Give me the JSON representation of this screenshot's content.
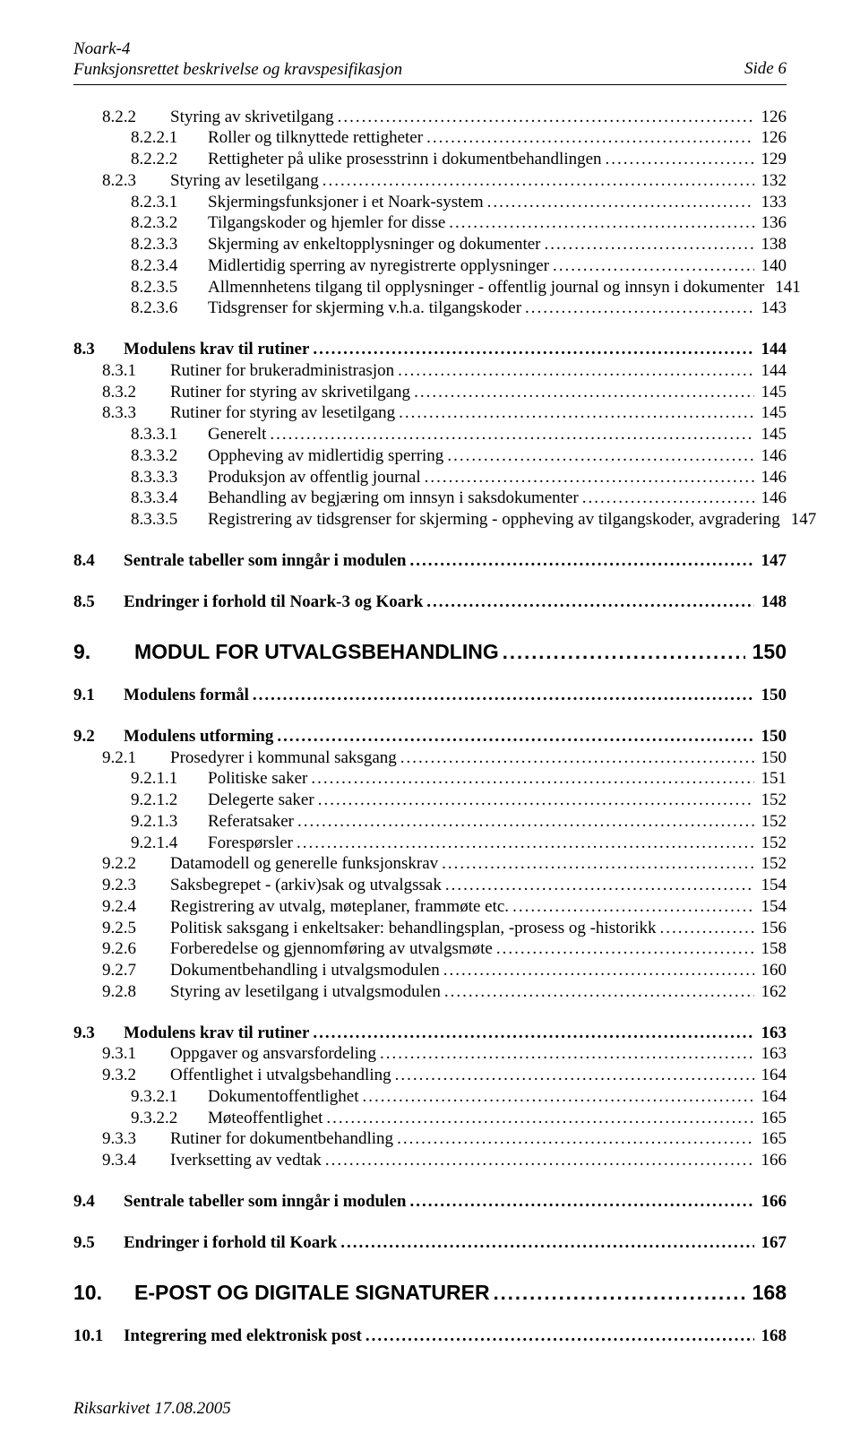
{
  "header": {
    "title1": "Noark-4",
    "title2": "Funksjonsrettet beskrivelse og kravspesifikasjon",
    "pageLabel": "Side 6"
  },
  "footer": "Riksarkivet 17.08.2005",
  "toc": [
    {
      "level": 3,
      "num": "8.2.2",
      "title": "Styring av skrivetilgang",
      "page": "126",
      "gap": ""
    },
    {
      "level": 4,
      "num": "8.2.2.1",
      "title": "Roller og tilknyttede rettigheter",
      "page": "126",
      "gap": ""
    },
    {
      "level": 4,
      "num": "8.2.2.2",
      "title": "Rettigheter på ulike prosesstrinn i dokumentbehandlingen",
      "page": "129",
      "gap": ""
    },
    {
      "level": 3,
      "num": "8.2.3",
      "title": "Styring av lesetilgang",
      "page": "132",
      "gap": ""
    },
    {
      "level": 4,
      "num": "8.2.3.1",
      "title": "Skjermingsfunksjoner i et Noark-system",
      "page": "133",
      "gap": ""
    },
    {
      "level": 4,
      "num": "8.2.3.2",
      "title": "Tilgangskoder og hjemler for disse",
      "page": "136",
      "gap": ""
    },
    {
      "level": 4,
      "num": "8.2.3.3",
      "title": "Skjerming av enkeltopplysninger og dokumenter",
      "page": "138",
      "gap": ""
    },
    {
      "level": 4,
      "num": "8.2.3.4",
      "title": "Midlertidig sperring av nyregistrerte opplysninger",
      "page": "140",
      "gap": ""
    },
    {
      "level": 4,
      "num": "8.2.3.5",
      "title": "Allmennhetens tilgang til opplysninger - offentlig journal og innsyn i dokumenter",
      "page": "141",
      "gap": ""
    },
    {
      "level": 4,
      "num": "8.2.3.6",
      "title": "Tidsgrenser for skjerming v.h.a. tilgangskoder",
      "page": "143",
      "gap": ""
    },
    {
      "level": 2,
      "num": "8.3",
      "title": "Modulens krav til rutiner",
      "page": "144",
      "gap": "gap-md",
      "bold": true
    },
    {
      "level": 3,
      "num": "8.3.1",
      "title": "Rutiner for brukeradministrasjon",
      "page": "144",
      "gap": ""
    },
    {
      "level": 3,
      "num": "8.3.2",
      "title": "Rutiner for styring av skrivetilgang",
      "page": "145",
      "gap": ""
    },
    {
      "level": 3,
      "num": "8.3.3",
      "title": "Rutiner for styring av lesetilgang",
      "page": "145",
      "gap": ""
    },
    {
      "level": 4,
      "num": "8.3.3.1",
      "title": "Generelt",
      "page": "145",
      "gap": ""
    },
    {
      "level": 4,
      "num": "8.3.3.2",
      "title": "Oppheving av midlertidig sperring",
      "page": "146",
      "gap": ""
    },
    {
      "level": 4,
      "num": "8.3.3.3",
      "title": "Produksjon av offentlig journal",
      "page": "146",
      "gap": ""
    },
    {
      "level": 4,
      "num": "8.3.3.4",
      "title": "Behandling av begjæring om innsyn i saksdokumenter",
      "page": "146",
      "gap": ""
    },
    {
      "level": 4,
      "num": "8.3.3.5",
      "title": "Registrering av tidsgrenser for skjerming - oppheving av tilgangskoder, avgradering",
      "page": "147",
      "gap": ""
    },
    {
      "level": 2,
      "num": "8.4",
      "title": "Sentrale tabeller som inngår i modulen",
      "page": "147",
      "gap": "gap-md",
      "bold": true
    },
    {
      "level": 2,
      "num": "8.5",
      "title": "Endringer i forhold til Noark-3 og Koark",
      "page": "148",
      "gap": "gap-md",
      "bold": true
    },
    {
      "level": 1,
      "num": "9.",
      "title": "MODUL FOR UTVALGSBEHANDLING",
      "page": "150",
      "gap": "gap-lg",
      "chapter": true
    },
    {
      "level": 2,
      "num": "9.1",
      "title": "Modulens formål",
      "page": "150",
      "gap": "gap-md",
      "bold": true
    },
    {
      "level": 2,
      "num": "9.2",
      "title": "Modulens utforming",
      "page": "150",
      "gap": "gap-md",
      "bold": true
    },
    {
      "level": 3,
      "num": "9.2.1",
      "title": "Prosedyrer i kommunal saksgang",
      "page": "150",
      "gap": ""
    },
    {
      "level": 4,
      "num": "9.2.1.1",
      "title": "Politiske saker",
      "page": "151",
      "gap": ""
    },
    {
      "level": 4,
      "num": "9.2.1.2",
      "title": "Delegerte saker",
      "page": "152",
      "gap": ""
    },
    {
      "level": 4,
      "num": "9.2.1.3",
      "title": "Referatsaker",
      "page": "152",
      "gap": ""
    },
    {
      "level": 4,
      "num": "9.2.1.4",
      "title": "Forespørsler",
      "page": "152",
      "gap": ""
    },
    {
      "level": 3,
      "num": "9.2.2",
      "title": "Datamodell og generelle funksjonskrav",
      "page": "152",
      "gap": ""
    },
    {
      "level": 3,
      "num": "9.2.3",
      "title": "Saksbegrepet - (arkiv)sak og utvalgssak",
      "page": "154",
      "gap": ""
    },
    {
      "level": 3,
      "num": "9.2.4",
      "title": "Registrering av utvalg, møteplaner, frammøte etc.",
      "page": "154",
      "gap": ""
    },
    {
      "level": 3,
      "num": "9.2.5",
      "title": "Politisk saksgang i enkeltsaker: behandlingsplan, -prosess  og -historikk",
      "page": "156",
      "gap": ""
    },
    {
      "level": 3,
      "num": "9.2.6",
      "title": "Forberedelse og gjennomføring av utvalgsmøte",
      "page": "158",
      "gap": ""
    },
    {
      "level": 3,
      "num": "9.2.7",
      "title": "Dokumentbehandling i utvalgsmodulen",
      "page": "160",
      "gap": ""
    },
    {
      "level": 3,
      "num": "9.2.8",
      "title": "Styring av lesetilgang i utvalgsmodulen",
      "page": "162",
      "gap": ""
    },
    {
      "level": 2,
      "num": "9.3",
      "title": "Modulens krav til rutiner",
      "page": "163",
      "gap": "gap-md",
      "bold": true
    },
    {
      "level": 3,
      "num": "9.3.1",
      "title": "Oppgaver og ansvarsfordeling",
      "page": "163",
      "gap": ""
    },
    {
      "level": 3,
      "num": "9.3.2",
      "title": "Offentlighet i utvalgsbehandling",
      "page": "164",
      "gap": ""
    },
    {
      "level": 4,
      "num": "9.3.2.1",
      "title": "Dokumentoffentlighet",
      "page": "164",
      "gap": ""
    },
    {
      "level": 4,
      "num": "9.3.2.2",
      "title": "Møteoffentlighet",
      "page": "165",
      "gap": ""
    },
    {
      "level": 3,
      "num": "9.3.3",
      "title": "Rutiner for dokumentbehandling",
      "page": "165",
      "gap": ""
    },
    {
      "level": 3,
      "num": "9.3.4",
      "title": "Iverksetting av vedtak",
      "page": "166",
      "gap": ""
    },
    {
      "level": 2,
      "num": "9.4",
      "title": "Sentrale tabeller som inngår i modulen",
      "page": "166",
      "gap": "gap-md",
      "bold": true
    },
    {
      "level": 2,
      "num": "9.5",
      "title": "Endringer i forhold til Koark",
      "page": "167",
      "gap": "gap-md",
      "bold": true
    },
    {
      "level": 1,
      "num": "10.",
      "title": "E-POST OG DIGITALE SIGNATURER",
      "page": "168",
      "gap": "gap-lg",
      "chapter": true
    },
    {
      "level": 2,
      "num": "10.1",
      "title": "Integrering med elektronisk post",
      "page": "168",
      "gap": "gap-md",
      "bold": true
    }
  ]
}
